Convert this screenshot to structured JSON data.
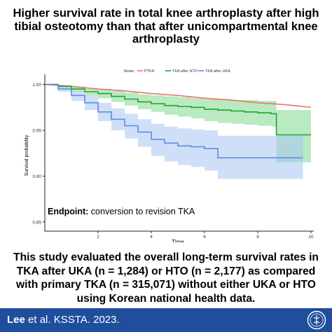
{
  "title": "Higher survival rate in total knee arthroplasty after high tibial osteotomy than that after unicompartmental knee arthroplasty",
  "summary": "This study evaluated the overall long-term survival rates in TKA after UKA (n = 1,284) or HTO (n = 2,177) as compared with primary TKA (n = 315,071) without either UKA or HTO using Korean national health data.",
  "footer": {
    "author": "Lee",
    "citation_rest": " et al. KSSTA. 2023.",
    "background": "#1f4e9c",
    "logo_icon": "kssta-logo-icon"
  },
  "chart_data": {
    "type": "line",
    "title": "",
    "xlabel": "Time",
    "ylabel": "Survival probability",
    "xlim": [
      0,
      10
    ],
    "ylim": [
      0.84,
      1.005
    ],
    "xticks": [
      2,
      4,
      6,
      8,
      10
    ],
    "yticks": [
      0.85,
      0.9,
      0.95,
      1.0
    ],
    "ytick_labels": [
      "0.85",
      "0.90",
      "0.95",
      "1.00"
    ],
    "legend": {
      "title": "Strata",
      "position": "top",
      "entries": [
        "PTKA",
        "TKA after HTO",
        "TKA after UKA"
      ]
    },
    "annotation": {
      "label": "Endpoint:",
      "text": " conversion to revision TKA"
    },
    "grid": false,
    "series": [
      {
        "name": "PTKA",
        "color": "#e8766d",
        "x": [
          0,
          1,
          2,
          3,
          4,
          5,
          6,
          7,
          8,
          9,
          10
        ],
        "y": [
          1.0,
          0.998,
          0.995,
          0.993,
          0.99,
          0.988,
          0.985,
          0.983,
          0.98,
          0.978,
          0.975
        ],
        "lower": [
          1.0,
          0.998,
          0.995,
          0.993,
          0.99,
          0.988,
          0.985,
          0.983,
          0.98,
          0.978,
          0.975
        ],
        "upper": [
          1.0,
          0.998,
          0.995,
          0.993,
          0.99,
          0.988,
          0.985,
          0.983,
          0.98,
          0.978,
          0.975
        ]
      },
      {
        "name": "TKA after HTO",
        "color": "#1fa335",
        "band_color": "#7fd88c",
        "x": [
          0,
          0.5,
          1.0,
          1.5,
          2.0,
          2.5,
          3.0,
          3.5,
          4.0,
          4.5,
          5.0,
          5.5,
          6.0,
          6.5,
          7.0,
          7.5,
          8.0,
          8.5,
          8.7,
          9.0,
          10.0
        ],
        "y": [
          1.0,
          0.998,
          0.995,
          0.992,
          0.99,
          0.987,
          0.984,
          0.981,
          0.979,
          0.977,
          0.976,
          0.975,
          0.973,
          0.972,
          0.971,
          0.97,
          0.969,
          0.968,
          0.945,
          0.945,
          0.945
        ],
        "lower": [
          1.0,
          0.996,
          0.992,
          0.988,
          0.985,
          0.981,
          0.977,
          0.973,
          0.97,
          0.967,
          0.965,
          0.963,
          0.96,
          0.958,
          0.957,
          0.956,
          0.955,
          0.954,
          0.915,
          0.915,
          0.915
        ],
        "upper": [
          1.0,
          0.999,
          0.998,
          0.996,
          0.995,
          0.993,
          0.991,
          0.989,
          0.988,
          0.987,
          0.986,
          0.985,
          0.984,
          0.984,
          0.983,
          0.983,
          0.982,
          0.982,
          0.972,
          0.972,
          0.972
        ]
      },
      {
        "name": "TKA after UKA",
        "color": "#5a8de3",
        "band_color": "#a9c4f2",
        "x": [
          0,
          0.5,
          1.0,
          1.5,
          2.0,
          2.5,
          3.0,
          3.5,
          4.0,
          4.5,
          5.0,
          5.5,
          6.0,
          6.5,
          7.0,
          8.0,
          9.0,
          9.7
        ],
        "y": [
          1.0,
          0.995,
          0.988,
          0.98,
          0.97,
          0.962,
          0.955,
          0.948,
          0.94,
          0.936,
          0.933,
          0.932,
          0.93,
          0.92,
          0.92,
          0.92,
          0.92,
          0.92
        ],
        "lower": [
          1.0,
          0.992,
          0.982,
          0.972,
          0.96,
          0.95,
          0.941,
          0.932,
          0.922,
          0.916,
          0.912,
          0.91,
          0.906,
          0.897,
          0.897,
          0.897,
          0.897,
          0.897
        ],
        "upper": [
          1.0,
          0.998,
          0.993,
          0.988,
          0.98,
          0.974,
          0.968,
          0.962,
          0.957,
          0.954,
          0.952,
          0.951,
          0.95,
          0.944,
          0.944,
          0.944,
          0.944,
          0.944
        ]
      }
    ]
  }
}
